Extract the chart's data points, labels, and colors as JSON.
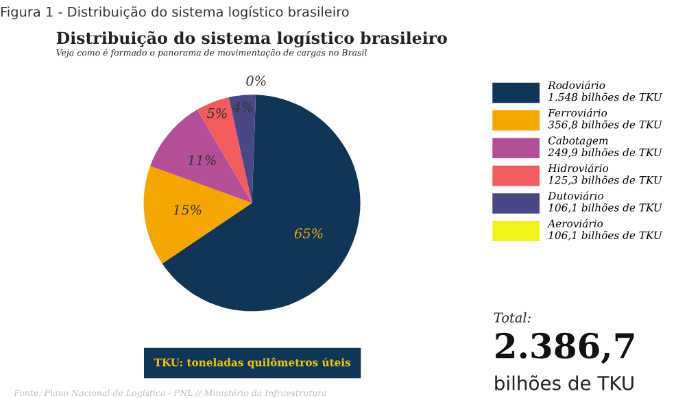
{
  "chart_data": {
    "type": "pie",
    "title": "Distribuição do sistema logístico brasileiro",
    "subtitle": "Veja como é formado o panorama de movimentação de cargas no Brasil",
    "categories": [
      "Rodoviário\n1.548 bilhões de TKU",
      "Ferroviário\n356,8 bilhões de TKU",
      "Cabotagem\n249,9 bilhões de TKU",
      "Hidroviário\n125,3 bilhões de TKU",
      "Dutoviário\n106,1 bilhões de TKU",
      "Aeroviário\n106,1 bilhões de TKU"
    ],
    "values": [
      65,
      15,
      11,
      5,
      4,
      0
    ],
    "value_labels": [
      "65%",
      "15%",
      "11%",
      "5%",
      "4%",
      "0%"
    ],
    "colors": [
      "#0f3656",
      "#f7a600",
      "#b24f97",
      "#f25c5c",
      "#4a4787",
      "#f2f21a"
    ],
    "legend": "right",
    "annotations": [
      "Figura 1 - Distribuição do sistema logístico brasileiro",
      "Total:",
      "2.386,7",
      "bilhões de TKU",
      "TKU: toneladas quilômetros úteis",
      "Fonte: Plano Nacional de Logística - PNL // Ministério da Infraestrutura"
    ]
  }
}
